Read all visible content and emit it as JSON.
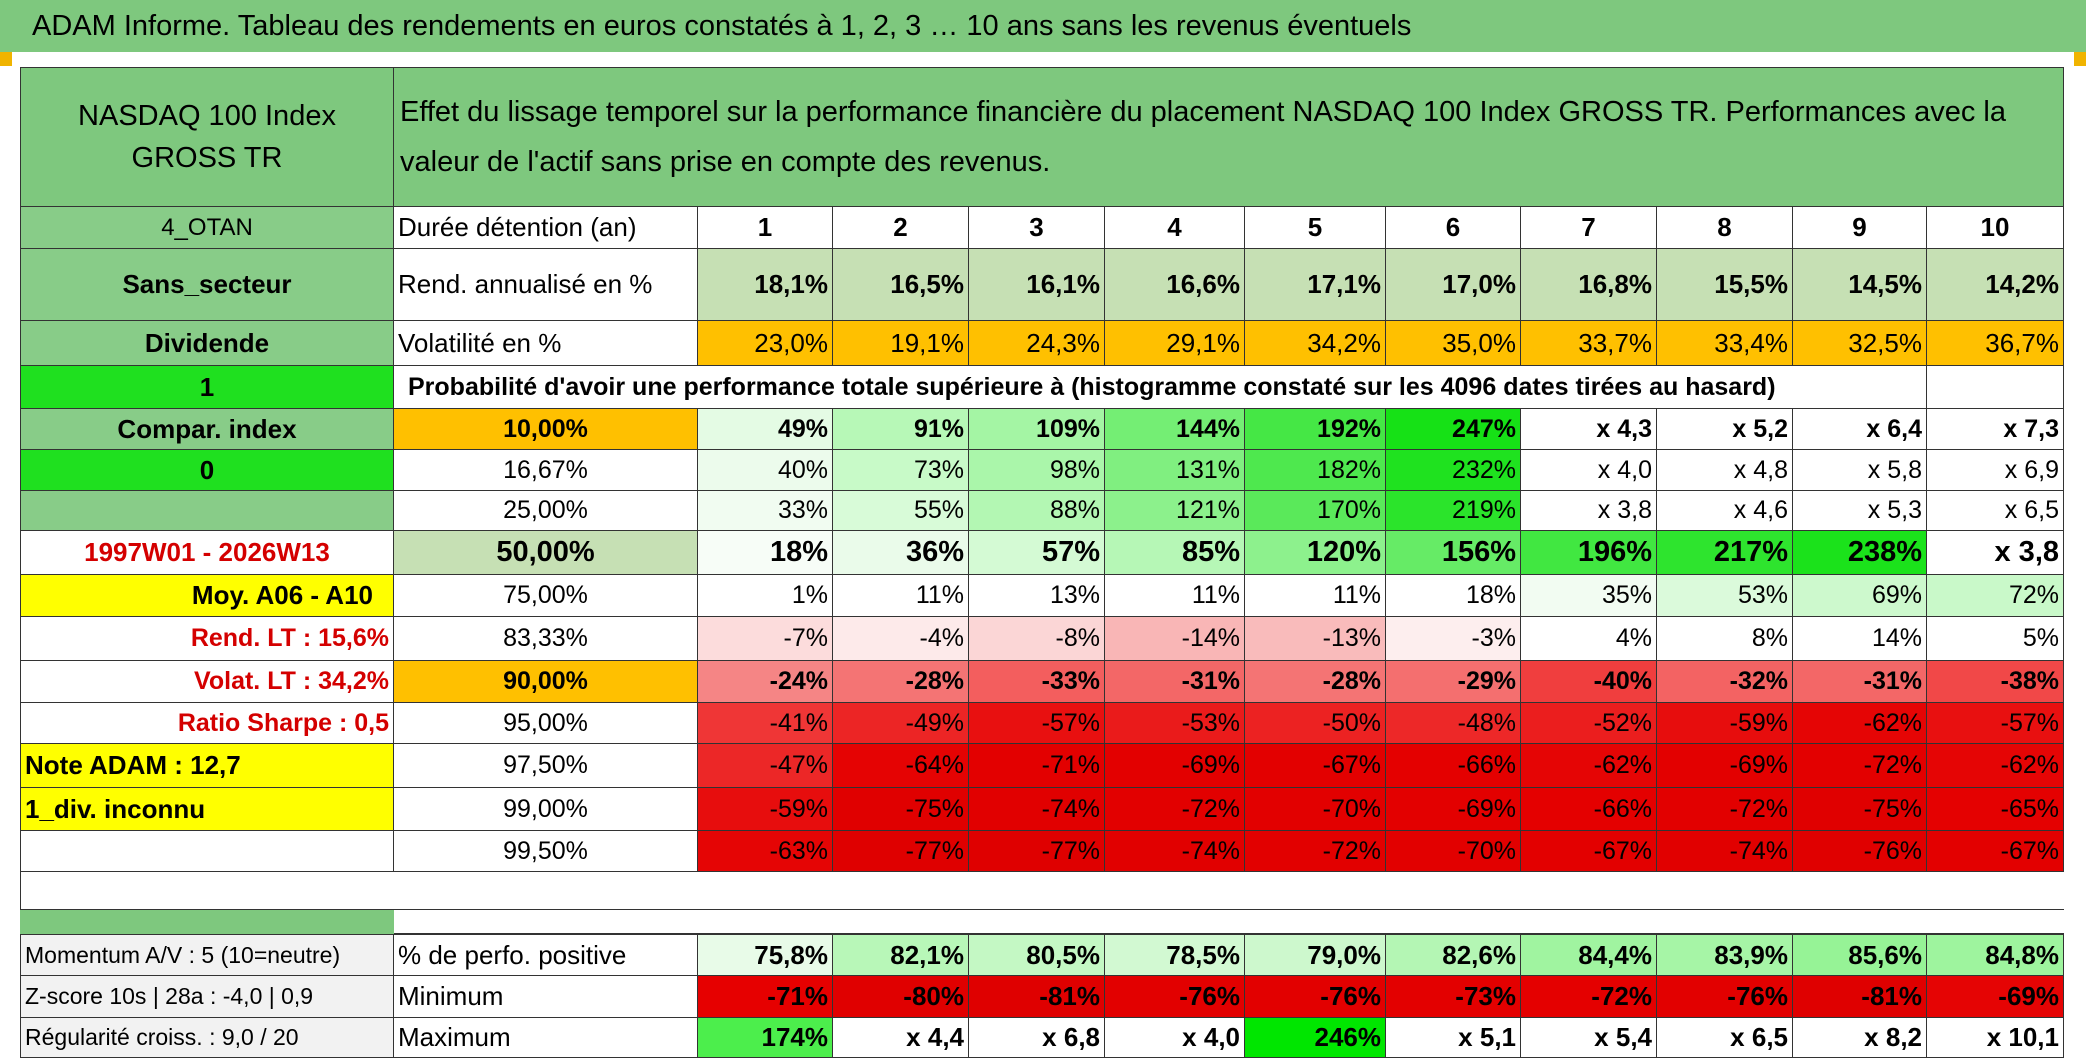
{
  "title": "ADAM Informe. Tableau des rendements en euros constatés à 1, 2, 3 … 10 ans sans les revenus éventuels",
  "header": {
    "index_name": "NASDAQ 100 Index GROSS TR",
    "description": "Effet du lissage temporel sur la performance financière du placement NASDAQ 100 Index GROSS TR. Performances avec la valeur de l'actif sans prise en compte des revenus."
  },
  "sidebar": {
    "code": "4_OTAN",
    "sector": "Sans_secteur",
    "dividend": "Dividende",
    "value_1": "1",
    "compar_index": "Compar. index",
    "value_0": "0",
    "period": "1997W01 - 2026W13",
    "moy": "Moy. A06 - A10",
    "rend_lt": "Rend. LT :   15,6%",
    "volat_lt": "Volat. LT :   34,2%",
    "ratio_sharpe": "Ratio Sharpe :    0,5",
    "note": "Note ADAM : 12,7",
    "div": "1_div. inconnu"
  },
  "table": {
    "duration_label": "Durée détention (an)",
    "years": [
      "1",
      "2",
      "3",
      "4",
      "5",
      "6",
      "7",
      "8",
      "9",
      "10"
    ],
    "rend_label": "Rend. annualisé en %",
    "rend": [
      "18,1%",
      "16,5%",
      "16,1%",
      "16,6%",
      "17,1%",
      "17,0%",
      "16,8%",
      "15,5%",
      "14,5%",
      "14,2%"
    ],
    "vol_label": "Volatilité en %",
    "vol": [
      "23,0%",
      "19,1%",
      "24,3%",
      "29,1%",
      "34,2%",
      "35,0%",
      "33,7%",
      "33,4%",
      "32,5%",
      "36,7%"
    ],
    "prob_label": "Probabilité d'avoir une performance totale supérieure à (histogramme constaté sur les 4096 dates tirées au hasard)",
    "rows": [
      {
        "level": "10,00%",
        "values": [
          "49%",
          "91%",
          "109%",
          "144%",
          "192%",
          "247%",
          "x 4,3",
          "x 5,2",
          "x 6,4",
          "x 7,3"
        ],
        "colors": [
          "#e4fbe4",
          "#b7f8b7",
          "#a4f5a4",
          "#74ee74",
          "#45e745",
          "#16e116",
          "#ffffff",
          "#ffffff",
          "#ffffff",
          "#ffffff"
        ]
      },
      {
        "level": "16,67%",
        "values": [
          "40%",
          "73%",
          "98%",
          "131%",
          "182%",
          "232%",
          "x 4,0",
          "x 4,8",
          "x 5,8",
          "x 6,9"
        ],
        "colors": [
          "#ecfbec",
          "#c8fac8",
          "#aaf6aa",
          "#80ef80",
          "#4ee84e",
          "#1fe21f",
          "#ffffff",
          "#ffffff",
          "#ffffff",
          "#ffffff"
        ]
      },
      {
        "level": "25,00%",
        "values": [
          "33%",
          "55%",
          "88%",
          "121%",
          "170%",
          "219%",
          "x 3,8",
          "x 4,6",
          "x 5,3",
          "x 6,5"
        ],
        "colors": [
          "#f1fcf1",
          "#d8fbd8",
          "#b3f7b3",
          "#8cf18c",
          "#5ae95a",
          "#2be42b",
          "#ffffff",
          "#ffffff",
          "#ffffff",
          "#ffffff"
        ]
      },
      {
        "level": "50,00%",
        "values": [
          "18%",
          "36%",
          "57%",
          "85%",
          "120%",
          "156%",
          "196%",
          "217%",
          "238%",
          "x 3,8"
        ],
        "colors": [
          "#f7fdf7",
          "#eafbea",
          "#d4fad4",
          "#b6f7b6",
          "#8df18d",
          "#66eb66",
          "#41e741",
          "#2ee42e",
          "#1be21b",
          "#ffffff"
        ]
      },
      {
        "level": "75,00%",
        "values": [
          "1%",
          "11%",
          "13%",
          "11%",
          "11%",
          "18%",
          "35%",
          "53%",
          "69%",
          "72%"
        ],
        "colors": [
          "#ffffff",
          "#ffffff",
          "#ffffff",
          "#ffffff",
          "#ffffff",
          "#ffffff",
          "#f2fcf2",
          "#dbfadb",
          "#cdf9cd",
          "#c9f9c9"
        ]
      },
      {
        "level": "83,33%",
        "values": [
          "-7%",
          "-4%",
          "-8%",
          "-14%",
          "-13%",
          "-3%",
          "4%",
          "8%",
          "14%",
          "5%"
        ],
        "colors": [
          "#fcdcdc",
          "#fdeaea",
          "#fbd6d6",
          "#f9b6b6",
          "#f9bbbb",
          "#fdeeee",
          "#ffffff",
          "#ffffff",
          "#ffffff",
          "#ffffff"
        ]
      },
      {
        "level": "90,00%",
        "values": [
          "-24%",
          "-28%",
          "-33%",
          "-31%",
          "-28%",
          "-29%",
          "-40%",
          "-32%",
          "-31%",
          "-38%"
        ],
        "colors": [
          "#f58585",
          "#f47474",
          "#f35e5e",
          "#f36767",
          "#f47474",
          "#f46f6f",
          "#f03e3e",
          "#f36363",
          "#f36767",
          "#f14848"
        ]
      },
      {
        "level": "95,00%",
        "values": [
          "-41%",
          "-49%",
          "-57%",
          "-53%",
          "-50%",
          "-48%",
          "-52%",
          "-59%",
          "-62%",
          "-57%"
        ],
        "colors": [
          "#ef3636",
          "#ec2525",
          "#e81010",
          "#ea1b1b",
          "#ec2222",
          "#ed2828",
          "#eb1e1e",
          "#e70d0d",
          "#e50505",
          "#e81010"
        ]
      },
      {
        "level": "97,50%",
        "values": [
          "-47%",
          "-64%",
          "-71%",
          "-69%",
          "-67%",
          "-66%",
          "-62%",
          "-69%",
          "-72%",
          "-62%"
        ],
        "colors": [
          "#ec2727",
          "#e50303",
          "#e30000",
          "#e30000",
          "#e30000",
          "#e40000",
          "#e50505",
          "#e30000",
          "#e30000",
          "#e50505"
        ]
      },
      {
        "level": "99,00%",
        "values": [
          "-59%",
          "-75%",
          "-74%",
          "-72%",
          "-70%",
          "-69%",
          "-66%",
          "-72%",
          "-75%",
          "-65%"
        ],
        "colors": [
          "#e70d0d",
          "#e00000",
          "#e10000",
          "#e20000",
          "#e20000",
          "#e30000",
          "#e40000",
          "#e20000",
          "#e00000",
          "#e40101"
        ]
      },
      {
        "level": "99,50%",
        "values": [
          "-63%",
          "-77%",
          "-77%",
          "-74%",
          "-72%",
          "-70%",
          "-67%",
          "-74%",
          "-76%",
          "-67%"
        ],
        "colors": [
          "#e50505",
          "#df0000",
          "#df0000",
          "#e10000",
          "#e20000",
          "#e20000",
          "#e30000",
          "#e10000",
          "#e00000",
          "#e30000"
        ]
      }
    ],
    "row_styles": {
      "bold_rows": [
        0,
        3,
        6
      ],
      "big_row": 3
    }
  },
  "footer": {
    "momentum": "Momentum A/V : 5 (10=neutre)",
    "zscore": "Z-score 10s | 28a : -4,0 | 0,9",
    "regularite": "Régularité croiss. : 9,0 / 20",
    "pos_label": "% de perfo. positive",
    "pos": [
      "75,8%",
      "82,1%",
      "80,5%",
      "78,5%",
      "79,0%",
      "82,6%",
      "84,4%",
      "83,9%",
      "85,6%",
      "84,8%"
    ],
    "min_label": "Minimum",
    "min": [
      "-71%",
      "-80%",
      "-81%",
      "-76%",
      "-76%",
      "-73%",
      "-72%",
      "-76%",
      "-81%",
      "-69%"
    ],
    "max_label": "Maximum",
    "max": [
      "174%",
      "x 4,4",
      "x 6,8",
      "x 4,0",
      "246%",
      "x 5,1",
      "x 5,4",
      "x 6,5",
      "x 8,2",
      "x 10,1"
    ]
  },
  "colors": {
    "header_green": "#7ec87e",
    "label_green": "#88cc88",
    "bright_green": "#1fe01f",
    "yellow": "#ffff00",
    "orange": "#ffc000",
    "red_text": "#d40000",
    "rend_fill": "#c6e0b4",
    "pos_fill": "#c9f6c9",
    "min_fill": "#e60000",
    "max_green": "#3cf03c"
  }
}
